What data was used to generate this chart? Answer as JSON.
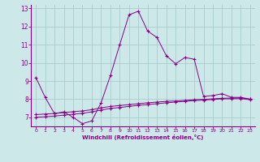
{
  "xlabel": "Windchill (Refroidissement éolien,°C)",
  "background_color": "#cce8e8",
  "line_color": "#880088",
  "grid_color": "#aacccc",
  "xlim": [
    -0.5,
    23.5
  ],
  "ylim": [
    6.5,
    13.2
  ],
  "xticks": [
    0,
    1,
    2,
    3,
    4,
    5,
    6,
    7,
    8,
    9,
    10,
    11,
    12,
    13,
    14,
    15,
    16,
    17,
    18,
    19,
    20,
    21,
    22,
    23
  ],
  "yticks": [
    7,
    8,
    9,
    10,
    11,
    12,
    13
  ],
  "line1_x": [
    0,
    1,
    2,
    3,
    4,
    5,
    6,
    7,
    8,
    9,
    10,
    11,
    12,
    13,
    14,
    15,
    16,
    17,
    18,
    19,
    20,
    21,
    22,
    23
  ],
  "line1_y": [
    9.2,
    8.1,
    7.2,
    7.3,
    7.0,
    6.65,
    6.8,
    7.8,
    9.3,
    11.0,
    12.65,
    12.85,
    11.75,
    11.4,
    10.4,
    9.95,
    10.3,
    10.2,
    8.15,
    8.2,
    8.3,
    8.1,
    8.1,
    8.0
  ],
  "line2_x": [
    0,
    1,
    2,
    3,
    4,
    5,
    6,
    7,
    8,
    9,
    10,
    11,
    12,
    13,
    14,
    15,
    16,
    17,
    18,
    19,
    20,
    21,
    22,
    23
  ],
  "line2_y": [
    7.15,
    7.18,
    7.21,
    7.26,
    7.31,
    7.35,
    7.42,
    7.52,
    7.6,
    7.65,
    7.7,
    7.75,
    7.8,
    7.84,
    7.88,
    7.9,
    7.93,
    7.97,
    7.99,
    8.02,
    8.05,
    8.06,
    8.07,
    8.0
  ],
  "line3_x": [
    0,
    1,
    2,
    3,
    4,
    5,
    6,
    7,
    8,
    9,
    10,
    11,
    12,
    13,
    14,
    15,
    16,
    17,
    18,
    19,
    20,
    21,
    22,
    23
  ],
  "line3_y": [
    7.0,
    7.03,
    7.07,
    7.12,
    7.17,
    7.22,
    7.3,
    7.4,
    7.49,
    7.54,
    7.6,
    7.66,
    7.7,
    7.75,
    7.8,
    7.84,
    7.88,
    7.92,
    7.95,
    7.98,
    8.02,
    8.02,
    8.03,
    7.97
  ]
}
